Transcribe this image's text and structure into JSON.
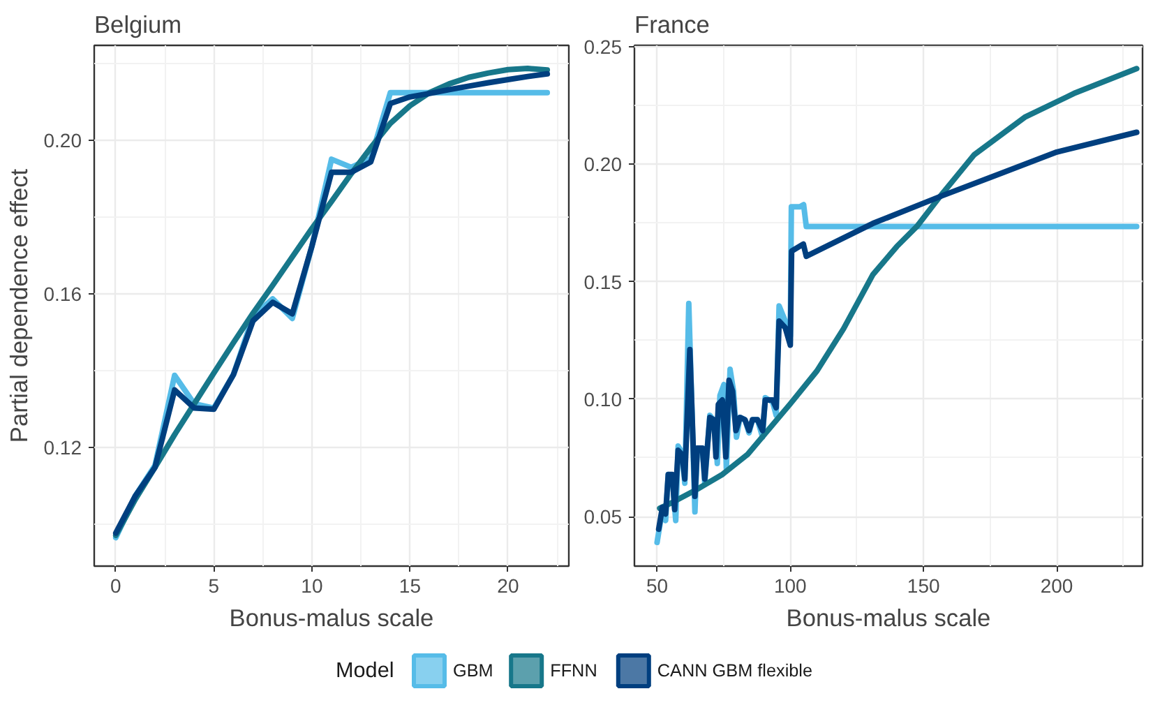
{
  "chart_data": [
    {
      "type": "line",
      "title": "Belgium",
      "xlabel": "Bonus-malus scale",
      "ylabel": "Partial dependence effect",
      "legend_title": "Model",
      "legend": "bottom",
      "grid": true,
      "xlim": [
        -1.1,
        23.1
      ],
      "ylim": [
        0.0892,
        0.2246
      ],
      "xticks": [
        0,
        5,
        10,
        15,
        20
      ],
      "yticks": [
        {
          "value": 0.12,
          "label": "0.12"
        },
        {
          "value": 0.16,
          "label": "0.16"
        },
        {
          "value": 0.2,
          "label": "0.20"
        }
      ],
      "series": [
        {
          "name": "GBM",
          "color": "#56bce8",
          "x": [
            0,
            1,
            2,
            3,
            4,
            5,
            6,
            7,
            8,
            9,
            10,
            11,
            12,
            13,
            14,
            22
          ],
          "values": [
            0.0966,
            0.1075,
            0.1154,
            0.1388,
            0.1314,
            0.1303,
            0.139,
            0.1542,
            0.1587,
            0.1536,
            0.1724,
            0.195,
            0.1929,
            0.1952,
            0.2123,
            0.2123
          ]
        },
        {
          "name": "FFNN",
          "color": "#17778a",
          "x": [
            0,
            1,
            2,
            3,
            4,
            5,
            6,
            7,
            8,
            9,
            10,
            11,
            12,
            13,
            14,
            15,
            16,
            17,
            18,
            19,
            20,
            21,
            22
          ],
          "values": [
            0.0972,
            0.1066,
            0.1149,
            0.1234,
            0.1314,
            0.1394,
            0.1473,
            0.155,
            0.1622,
            0.1696,
            0.177,
            0.184,
            0.1912,
            0.198,
            0.2043,
            0.2089,
            0.2123,
            0.2146,
            0.2163,
            0.2174,
            0.2183,
            0.2186,
            0.2182
          ]
        },
        {
          "name": "CANN GBM flexible",
          "color": "#003f7f",
          "x": [
            0,
            1,
            2,
            3,
            4,
            5,
            6,
            7,
            8,
            9,
            10,
            11,
            12,
            13,
            14,
            15,
            16,
            17,
            18,
            19,
            20,
            21,
            22
          ],
          "values": [
            0.0978,
            0.1075,
            0.1149,
            0.135,
            0.1303,
            0.13,
            0.139,
            0.153,
            0.1578,
            0.1548,
            0.1724,
            0.1916,
            0.1916,
            0.1943,
            0.2095,
            0.2112,
            0.2121,
            0.2131,
            0.214,
            0.2149,
            0.2157,
            0.2165,
            0.2172
          ]
        }
      ]
    },
    {
      "type": "line",
      "title": "France",
      "xlabel": "Bonus-malus scale",
      "grid": true,
      "xlim": [
        41.5,
        232.2
      ],
      "ylim": [
        0.0289,
        0.2506
      ],
      "xticks": [
        50,
        100,
        150,
        200
      ],
      "yticks": [
        {
          "value": 0.05,
          "label": "0.05"
        },
        {
          "value": 0.1,
          "label": "0.10"
        },
        {
          "value": 0.15,
          "label": "0.15"
        },
        {
          "value": 0.2,
          "label": "0.20"
        },
        {
          "value": 0.25,
          "label": "0.25"
        }
      ],
      "series": [
        {
          "color": "#56bce8",
          "x": [
            50,
            52,
            53.2,
            54.2,
            55.7,
            57,
            57.9,
            59.4,
            60.4,
            61.9,
            64.2,
            65.1,
            67,
            67.9,
            69.8,
            71.7,
            72.6,
            73.6,
            75.1,
            76,
            77.4,
            78.7,
            79.8,
            81.1,
            83,
            84.5,
            85.8,
            87.7,
            89.6,
            90.6,
            93.4,
            94.7,
            95.8,
            98.1,
            100,
            100.4,
            103.6,
            105,
            106,
            230
          ],
          "values": [
            0.039,
            0.053,
            0.0483,
            0.0679,
            0.067,
            0.0483,
            0.08,
            0.0772,
            0.0642,
            0.1407,
            0.052,
            0.0791,
            0.0791,
            0.0642,
            0.0931,
            0.0903,
            0.0726,
            0.1015,
            0.1062,
            0.0707,
            0.1127,
            0.1034,
            0.0838,
            0.0922,
            0.0912,
            0.0856,
            0.0912,
            0.0912,
            0.0838,
            0.1006,
            0.0987,
            0.0931,
            0.1397,
            0.1332,
            0.1267,
            0.1819,
            0.1819,
            0.1828,
            0.1735,
            0.1735
          ]
        },
        {
          "color": "#17778a",
          "x": [
            51,
            55.7,
            65,
            74.6,
            84,
            100,
            110,
            120,
            131,
            140,
            147.5,
            156,
            169,
            188,
            207,
            230
          ],
          "values": [
            0.0535,
            0.056,
            0.0616,
            0.068,
            0.0765,
            0.098,
            0.112,
            0.13,
            0.153,
            0.165,
            0.1735,
            0.186,
            0.204,
            0.22,
            0.2304,
            0.2407
          ]
        },
        {
          "color": "#003f7f",
          "x": [
            50.6,
            52,
            53.2,
            54.2,
            55.7,
            56.6,
            57.9,
            59.4,
            60.4,
            62.3,
            64.2,
            65.1,
            67,
            67.9,
            69.8,
            71.3,
            72.1,
            73,
            74.5,
            75.8,
            77,
            78.3,
            79.6,
            81.1,
            83,
            84.5,
            85.8,
            87.7,
            89.6,
            90.6,
            93.4,
            94.7,
            95.8,
            98.1,
            100,
            100.5,
            104.9,
            106,
            131,
            157,
            180,
            200,
            230
          ],
          "values": [
            0.0446,
            0.0539,
            0.0511,
            0.0679,
            0.0679,
            0.053,
            0.0782,
            0.0763,
            0.066,
            0.1211,
            0.0586,
            0.0791,
            0.0791,
            0.066,
            0.0922,
            0.0912,
            0.0754,
            0.0978,
            0.0996,
            0.0754,
            0.108,
            0.1034,
            0.0866,
            0.0922,
            0.0912,
            0.0866,
            0.0912,
            0.0912,
            0.0866,
            0.0996,
            0.0996,
            0.0963,
            0.1332,
            0.1304,
            0.123,
            0.163,
            0.166,
            0.1608,
            0.1748,
            0.1866,
            0.1965,
            0.2052,
            0.2136
          ]
        }
      ]
    }
  ]
}
